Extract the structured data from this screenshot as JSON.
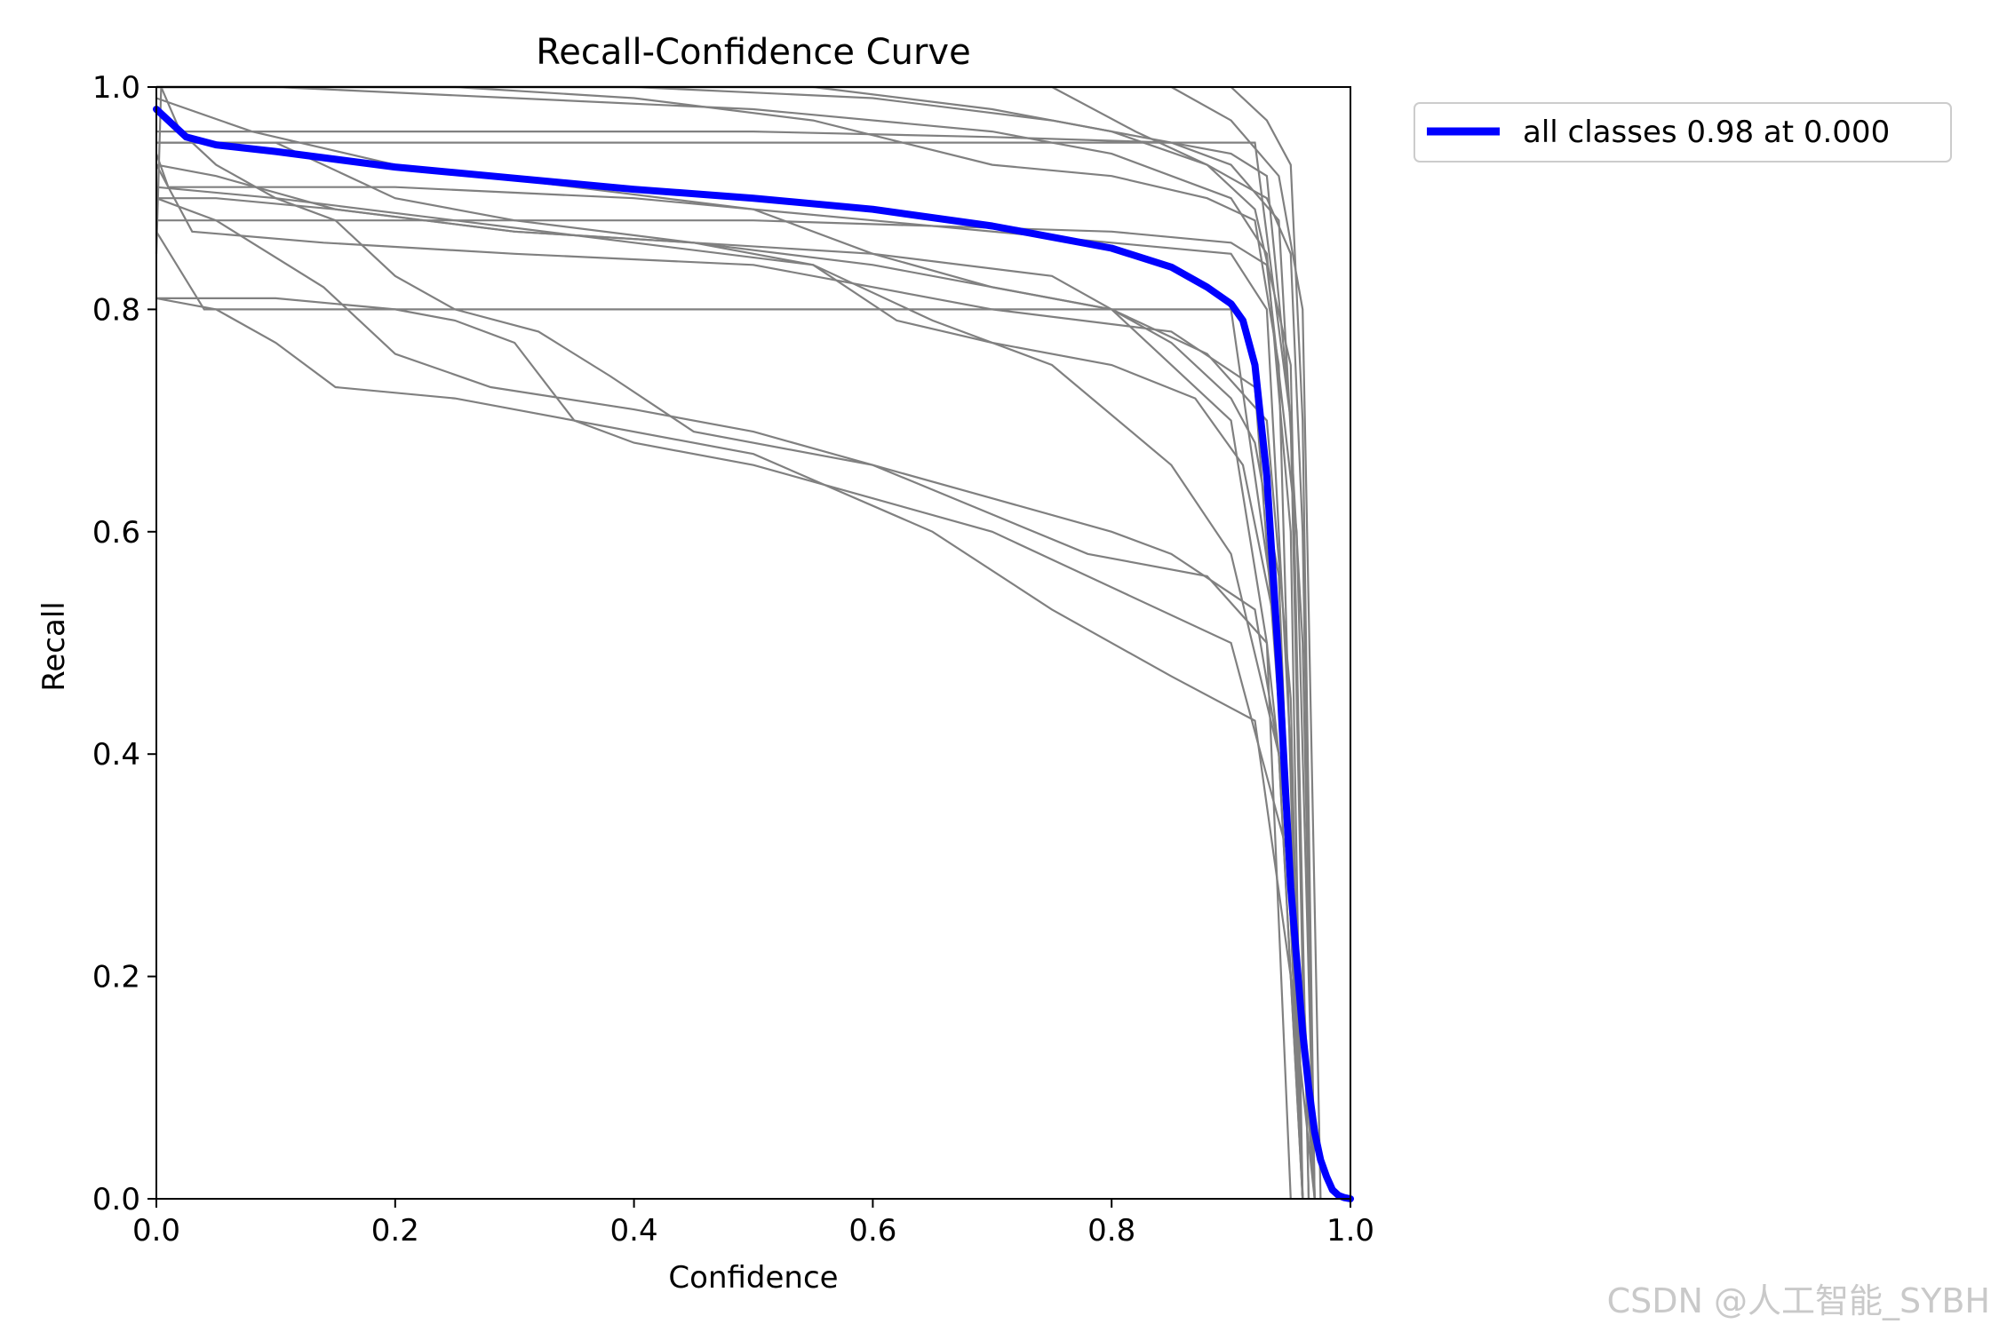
{
  "chart_data": {
    "type": "line",
    "title": "Recall-Confidence Curve",
    "xlabel": "Confidence",
    "ylabel": "Recall",
    "xlim": [
      0.0,
      1.0
    ],
    "ylim": [
      0.0,
      1.0
    ],
    "xticks": [
      "0.0",
      "0.2",
      "0.4",
      "0.6",
      "0.8",
      "1.0"
    ],
    "yticks": [
      "0.0",
      "0.2",
      "0.4",
      "0.6",
      "0.8",
      "1.0"
    ],
    "grid": false,
    "legend_position": "outside-top-right",
    "colors": {
      "main": "#0000ff",
      "classes": "#808080"
    },
    "main_series": {
      "name": "all classes 0.98 at 0.000",
      "x": [
        0.0,
        0.01,
        0.025,
        0.05,
        0.1,
        0.15,
        0.2,
        0.3,
        0.4,
        0.5,
        0.6,
        0.7,
        0.8,
        0.85,
        0.88,
        0.9,
        0.91,
        0.92,
        0.93,
        0.94,
        0.95,
        0.96,
        0.965,
        0.97,
        0.975,
        0.98,
        0.985,
        0.99,
        0.995,
        1.0
      ],
      "y": [
        0.98,
        0.97,
        0.955,
        0.948,
        0.942,
        0.935,
        0.928,
        0.918,
        0.908,
        0.9,
        0.89,
        0.875,
        0.855,
        0.838,
        0.82,
        0.805,
        0.79,
        0.75,
        0.65,
        0.48,
        0.28,
        0.15,
        0.1,
        0.06,
        0.035,
        0.02,
        0.008,
        0.003,
        0.001,
        0.0
      ]
    },
    "class_series": [
      {
        "x": [
          0.0,
          0.02,
          0.5,
          0.7,
          0.85,
          0.9,
          0.93,
          0.95,
          0.96,
          0.97
        ],
        "y": [
          0.96,
          0.96,
          0.96,
          0.955,
          0.95,
          0.94,
          0.92,
          0.7,
          0.2,
          0.0
        ]
      },
      {
        "x": [
          0.0,
          0.01,
          0.2,
          0.4,
          0.6,
          0.8,
          0.9,
          0.93,
          0.95,
          0.96
        ],
        "y": [
          0.94,
          0.91,
          0.91,
          0.9,
          0.88,
          0.86,
          0.85,
          0.8,
          0.4,
          0.0
        ]
      },
      {
        "x": [
          0.0,
          0.03,
          0.14,
          0.3,
          0.5,
          0.7,
          0.85,
          0.92,
          0.95,
          0.96
        ],
        "y": [
          0.93,
          0.87,
          0.86,
          0.85,
          0.84,
          0.8,
          0.78,
          0.73,
          0.3,
          0.0
        ]
      },
      {
        "x": [
          0.0,
          0.04,
          0.2,
          0.4,
          0.5,
          0.6,
          0.8,
          0.9,
          0.94,
          0.96
        ],
        "y": [
          0.87,
          0.8,
          0.8,
          0.8,
          0.8,
          0.8,
          0.8,
          0.8,
          0.5,
          0.0
        ]
      },
      {
        "x": [
          0.0,
          0.05,
          0.1,
          0.15,
          0.25,
          0.3,
          0.35,
          0.4,
          0.5,
          0.6,
          0.7,
          0.8,
          0.9,
          0.95,
          0.97
        ],
        "y": [
          0.81,
          0.8,
          0.77,
          0.73,
          0.72,
          0.71,
          0.7,
          0.68,
          0.66,
          0.63,
          0.6,
          0.55,
          0.5,
          0.3,
          0.0
        ]
      },
      {
        "x": [
          0.0,
          0.1,
          0.2,
          0.25,
          0.3,
          0.35,
          0.5,
          0.65,
          0.75,
          0.85,
          0.92,
          0.95,
          0.97
        ],
        "y": [
          0.81,
          0.81,
          0.8,
          0.79,
          0.77,
          0.7,
          0.67,
          0.6,
          0.53,
          0.47,
          0.43,
          0.2,
          0.0
        ]
      },
      {
        "x": [
          0.0,
          0.05,
          0.14,
          0.2,
          0.28,
          0.4,
          0.5,
          0.6,
          0.7,
          0.8,
          0.85,
          0.92,
          0.94,
          0.96
        ],
        "y": [
          0.9,
          0.88,
          0.82,
          0.76,
          0.73,
          0.71,
          0.69,
          0.66,
          0.63,
          0.6,
          0.58,
          0.53,
          0.4,
          0.0
        ]
      },
      {
        "x": [
          0.0,
          0.05,
          0.15,
          0.3,
          0.45,
          0.6,
          0.75,
          0.85,
          0.9,
          0.92,
          0.94,
          0.96
        ],
        "y": [
          0.93,
          0.92,
          0.89,
          0.87,
          0.86,
          0.85,
          0.83,
          0.77,
          0.72,
          0.68,
          0.56,
          0.0
        ]
      },
      {
        "x": [
          0.0,
          0.08,
          0.2,
          0.35,
          0.5,
          0.6,
          0.7,
          0.8,
          0.88,
          0.93,
          0.95,
          0.96
        ],
        "y": [
          0.99,
          0.96,
          0.93,
          0.91,
          0.89,
          0.85,
          0.82,
          0.8,
          0.76,
          0.7,
          0.45,
          0.0
        ]
      },
      {
        "x": [
          0.0,
          0.1,
          0.2,
          0.3,
          0.45,
          0.55,
          0.62,
          0.7,
          0.8,
          0.87,
          0.91,
          0.94,
          0.96
        ],
        "y": [
          0.95,
          0.95,
          0.9,
          0.88,
          0.86,
          0.84,
          0.79,
          0.77,
          0.75,
          0.72,
          0.66,
          0.5,
          0.0
        ]
      },
      {
        "x": [
          0.0,
          0.02,
          0.3,
          0.5,
          0.7,
          0.85,
          0.92,
          0.95,
          0.965
        ],
        "y": [
          0.95,
          0.95,
          0.95,
          0.95,
          0.95,
          0.95,
          0.95,
          0.7,
          0.0
        ]
      },
      {
        "x": [
          0.0,
          0.1,
          0.3,
          0.5,
          0.7,
          0.8,
          0.9,
          0.93,
          0.95,
          0.96
        ],
        "y": [
          1.0,
          1.0,
          0.99,
          0.98,
          0.96,
          0.94,
          0.9,
          0.85,
          0.6,
          0.0
        ]
      },
      {
        "x": [
          0.0,
          0.25,
          0.4,
          0.55,
          0.7,
          0.8,
          0.88,
          0.92,
          0.94,
          0.96
        ],
        "y": [
          1.0,
          1.0,
          0.99,
          0.97,
          0.93,
          0.92,
          0.9,
          0.88,
          0.75,
          0.0
        ]
      },
      {
        "x": [
          0.0,
          0.4,
          0.6,
          0.75,
          0.85,
          0.9,
          0.94,
          0.96,
          0.97
        ],
        "y": [
          1.0,
          1.0,
          0.99,
          0.97,
          0.95,
          0.93,
          0.88,
          0.5,
          0.0
        ]
      },
      {
        "x": [
          0.0,
          0.55,
          0.7,
          0.8,
          0.88,
          0.92,
          0.95,
          0.965
        ],
        "y": [
          1.0,
          1.0,
          0.98,
          0.96,
          0.93,
          0.89,
          0.75,
          0.0
        ]
      },
      {
        "x": [
          0.0,
          0.75,
          0.82,
          0.88,
          0.93,
          0.95,
          0.96,
          0.97
        ],
        "y": [
          1.0,
          1.0,
          0.96,
          0.93,
          0.9,
          0.85,
          0.6,
          0.0
        ]
      },
      {
        "x": [
          0.0,
          0.85,
          0.9,
          0.94,
          0.96,
          0.975
        ],
        "y": [
          1.0,
          1.0,
          0.97,
          0.92,
          0.8,
          0.0
        ]
      },
      {
        "x": [
          0.0,
          0.9,
          0.93,
          0.95,
          0.96,
          0.97
        ],
        "y": [
          1.0,
          1.0,
          0.97,
          0.93,
          0.7,
          0.0
        ]
      },
      {
        "x": [
          0.0,
          0.004,
          0.02,
          0.05,
          0.1,
          0.15,
          0.2,
          0.25,
          0.32,
          0.38,
          0.45,
          0.6,
          0.78,
          0.88,
          0.93,
          0.95,
          0.96
        ],
        "y": [
          0.85,
          1.0,
          0.96,
          0.93,
          0.9,
          0.88,
          0.83,
          0.8,
          0.78,
          0.74,
          0.69,
          0.66,
          0.58,
          0.56,
          0.5,
          0.3,
          0.0
        ]
      },
      {
        "x": [
          0.0,
          0.1,
          0.25,
          0.4,
          0.55,
          0.65,
          0.75,
          0.85,
          0.9,
          0.94,
          0.96
        ],
        "y": [
          0.91,
          0.9,
          0.88,
          0.86,
          0.84,
          0.79,
          0.75,
          0.66,
          0.58,
          0.4,
          0.0
        ]
      },
      {
        "x": [
          0.0,
          0.05,
          0.15,
          0.3,
          0.45,
          0.6,
          0.8,
          0.9,
          0.93,
          0.95
        ],
        "y": [
          0.9,
          0.9,
          0.89,
          0.87,
          0.86,
          0.84,
          0.8,
          0.7,
          0.5,
          0.0
        ]
      },
      {
        "x": [
          0.0,
          0.02,
          0.5,
          0.8,
          0.9,
          0.93,
          0.955,
          0.97
        ],
        "y": [
          0.88,
          0.88,
          0.88,
          0.87,
          0.86,
          0.84,
          0.6,
          0.0
        ]
      }
    ]
  },
  "watermark": "CSDN @人工智能_SYBH"
}
